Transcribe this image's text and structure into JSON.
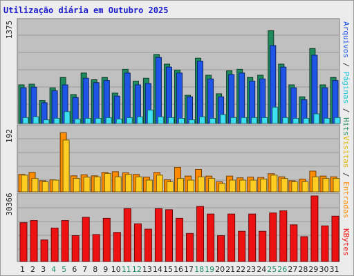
{
  "title": "Utilização diária em Outubro 2025",
  "colors": {
    "hits": "#1f8a5c",
    "files": "#1e55e6",
    "pages": "#3de0f0",
    "visits": "#ffcc22",
    "entries": "#ff8c00",
    "kbytes": "#ee1111",
    "weekend_label": "#1b8f6a",
    "weekday_label": "#222222",
    "panel_bg": "#c0c0c0"
  },
  "legend": {
    "hits": "Hits",
    "files": "Arquivos",
    "pages": "Páginas",
    "visits": "Visitas",
    "entries": "Entradas",
    "kbytes": "KBytes",
    "sep": "/"
  },
  "chart_data": [
    {
      "type": "bar",
      "panel": "top",
      "ymax_label": "1375",
      "ylim": [
        0,
        1375
      ],
      "x": [
        "1",
        "2",
        "3",
        "4",
        "5",
        "6",
        "7",
        "8",
        "9",
        "10",
        "11",
        "12",
        "13",
        "14",
        "15",
        "16",
        "17",
        "18",
        "19",
        "20",
        "21",
        "22",
        "23",
        "24",
        "25",
        "26",
        "27",
        "28",
        "29",
        "30",
        "31"
      ],
      "weekend": [
        false,
        false,
        false,
        true,
        true,
        false,
        false,
        false,
        false,
        false,
        true,
        true,
        false,
        false,
        false,
        false,
        false,
        true,
        true,
        false,
        false,
        false,
        false,
        false,
        true,
        true,
        false,
        false,
        false,
        false,
        false
      ],
      "series": [
        {
          "name": "Hits",
          "values": [
            520,
            530,
            310,
            480,
            620,
            390,
            680,
            590,
            620,
            410,
            730,
            570,
            610,
            930,
            800,
            720,
            380,
            880,
            650,
            400,
            710,
            730,
            620,
            650,
            1250,
            800,
            520,
            360,
            1010,
            520,
            620
          ]
        },
        {
          "name": "Arquivos",
          "values": [
            480,
            490,
            280,
            440,
            520,
            350,
            610,
            550,
            580,
            370,
            680,
            520,
            540,
            890,
            760,
            680,
            360,
            840,
            600,
            360,
            660,
            680,
            570,
            600,
            1050,
            760,
            480,
            320,
            920,
            480,
            580
          ]
        },
        {
          "name": "Páginas",
          "values": [
            80,
            90,
            50,
            70,
            160,
            60,
            70,
            70,
            80,
            60,
            80,
            90,
            180,
            90,
            80,
            70,
            50,
            90,
            70,
            120,
            80,
            80,
            80,
            80,
            220,
            80,
            70,
            70,
            130,
            70,
            80
          ]
        }
      ]
    },
    {
      "type": "bar",
      "panel": "middle",
      "ymax_label": "192",
      "ylim": [
        0,
        192
      ],
      "x": [
        "1",
        "2",
        "3",
        "4",
        "5",
        "6",
        "7",
        "8",
        "9",
        "10",
        "11",
        "12",
        "13",
        "14",
        "15",
        "16",
        "17",
        "18",
        "19",
        "20",
        "21",
        "22",
        "23",
        "24",
        "25",
        "26",
        "27",
        "28",
        "29",
        "30",
        "31"
      ],
      "series": [
        {
          "name": "Visitas",
          "values": [
            50,
            40,
            30,
            35,
            155,
            40,
            44,
            45,
            55,
            45,
            52,
            45,
            35,
            50,
            30,
            40,
            35,
            45,
            40,
            25,
            35,
            35,
            35,
            38,
            50,
            40,
            30,
            30,
            45,
            40,
            40
          ]
        },
        {
          "name": "Entradas",
          "values": [
            52,
            58,
            33,
            36,
            177,
            48,
            51,
            48,
            58,
            60,
            57,
            52,
            44,
            58,
            36,
            73,
            47,
            67,
            47,
            30,
            47,
            42,
            44,
            43,
            54,
            45,
            33,
            38,
            62,
            47,
            45
          ]
        }
      ]
    },
    {
      "type": "bar",
      "panel": "bottom",
      "ymax_label": "30366",
      "ylim": [
        0,
        30366
      ],
      "x": [
        "1",
        "2",
        "3",
        "4",
        "5",
        "6",
        "7",
        "8",
        "9",
        "10",
        "11",
        "12",
        "13",
        "14",
        "15",
        "16",
        "17",
        "18",
        "19",
        "20",
        "21",
        "22",
        "23",
        "24",
        "25",
        "26",
        "27",
        "28",
        "29",
        "30",
        "31"
      ],
      "series": [
        {
          "name": "KBytes",
          "values": [
            18000,
            19000,
            10000,
            15500,
            19000,
            12000,
            20500,
            12500,
            20000,
            13500,
            24500,
            17500,
            15000,
            24500,
            24000,
            20000,
            13000,
            25500,
            22000,
            12000,
            22000,
            14000,
            22000,
            14000,
            22500,
            23500,
            17000,
            11500,
            30366,
            16500,
            21000
          ]
        }
      ]
    }
  ]
}
